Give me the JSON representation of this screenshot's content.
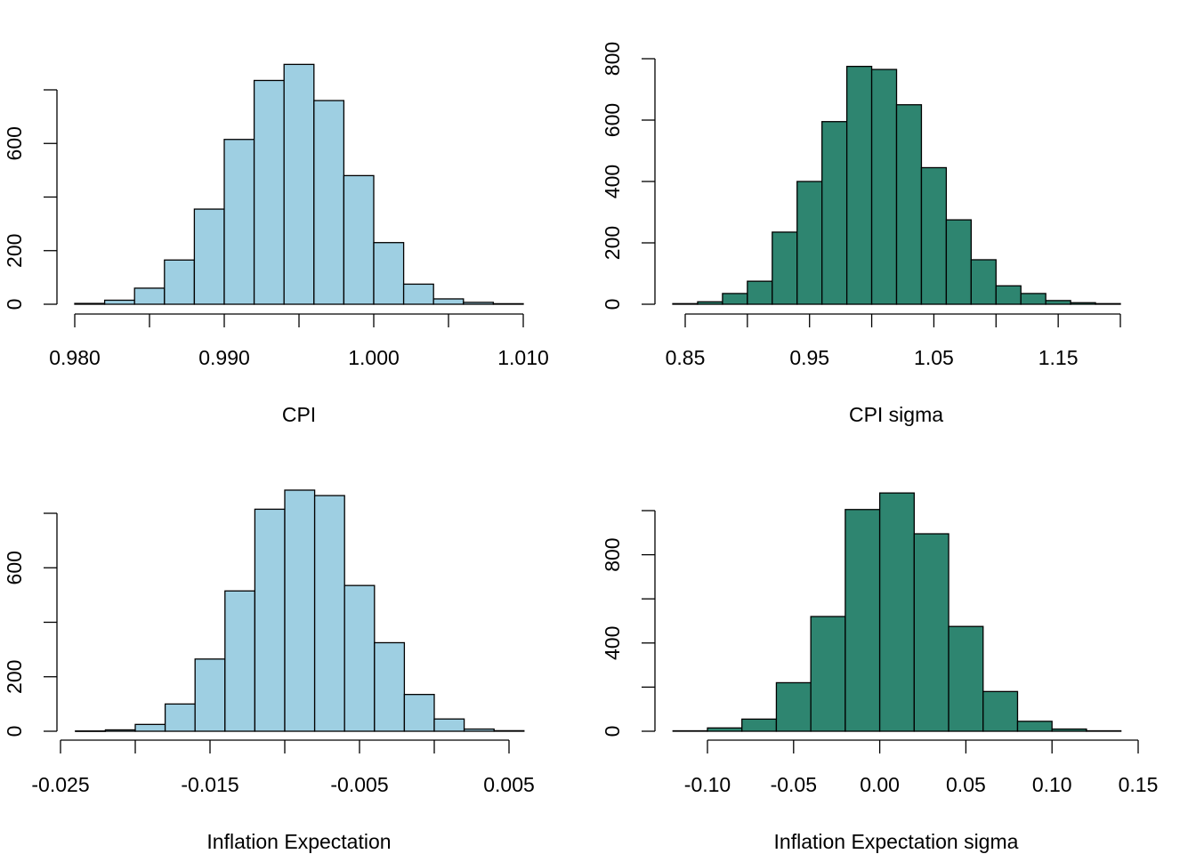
{
  "chart_data": [
    {
      "type": "histogram",
      "title": "",
      "xlabel": "CPI",
      "ylabel": "",
      "bar_color": "#9ECFE2",
      "bin_start": 0.98,
      "bin_width": 0.002,
      "values": [
        3,
        15,
        60,
        165,
        355,
        615,
        835,
        895,
        760,
        480,
        230,
        75,
        20,
        7,
        2
      ],
      "xlim": [
        0.98,
        1.01
      ],
      "ylim": [
        0,
        800
      ],
      "x_ticks": [
        0.98,
        0.985,
        0.99,
        0.995,
        1.0,
        1.005,
        1.01
      ],
      "x_tick_labels": [
        "0.980",
        "",
        "0.990",
        "",
        "1.000",
        "",
        "1.010"
      ],
      "y_ticks": [
        0,
        200,
        400,
        600,
        800
      ],
      "y_tick_labels": [
        "0",
        "200",
        "",
        "600",
        ""
      ]
    },
    {
      "type": "histogram",
      "title": "",
      "xlabel": "CPI sigma",
      "ylabel": "",
      "bar_color": "#2E8570",
      "bin_start": 0.84,
      "bin_width": 0.02,
      "values": [
        2,
        8,
        35,
        75,
        235,
        400,
        595,
        775,
        765,
        650,
        445,
        275,
        145,
        60,
        35,
        12,
        5,
        2
      ],
      "xlim": [
        0.85,
        1.2
      ],
      "ylim": [
        0,
        800
      ],
      "x_ticks": [
        0.85,
        0.9,
        0.95,
        1.0,
        1.05,
        1.1,
        1.15,
        1.2
      ],
      "x_tick_labels": [
        "0.85",
        "",
        "0.95",
        "",
        "1.05",
        "",
        "1.15",
        ""
      ],
      "y_ticks": [
        0,
        200,
        400,
        600,
        800
      ],
      "y_tick_labels": [
        "0",
        "200",
        "400",
        "600",
        "800"
      ]
    },
    {
      "type": "histogram",
      "title": "",
      "xlabel": "Inflation Expectation",
      "ylabel": "",
      "bar_color": "#9ECFE2",
      "bin_start": -0.024,
      "bin_width": 0.002,
      "values": [
        1,
        5,
        25,
        100,
        265,
        515,
        815,
        885,
        865,
        535,
        325,
        135,
        45,
        8,
        2
      ],
      "xlim": [
        -0.025,
        0.005
      ],
      "ylim": [
        0,
        800
      ],
      "x_ticks": [
        -0.025,
        -0.02,
        -0.015,
        -0.01,
        -0.005,
        0.0,
        0.005
      ],
      "x_tick_labels": [
        "-0.025",
        "",
        "-0.015",
        "",
        "-0.005",
        "",
        "0.005"
      ],
      "y_ticks": [
        0,
        200,
        400,
        600,
        800
      ],
      "y_tick_labels": [
        "0",
        "200",
        "",
        "600",
        ""
      ]
    },
    {
      "type": "histogram",
      "title": "",
      "xlabel": "Inflation Expectation sigma",
      "ylabel": "",
      "bar_color": "#2E8570",
      "bin_start": -0.12,
      "bin_width": 0.02,
      "values": [
        2,
        15,
        55,
        220,
        520,
        1005,
        1080,
        895,
        475,
        180,
        45,
        10,
        2
      ],
      "xlim": [
        -0.1,
        0.15
      ],
      "ylim": [
        0,
        1000
      ],
      "x_ticks": [
        -0.1,
        -0.05,
        0.0,
        0.05,
        0.1,
        0.15
      ],
      "x_tick_labels": [
        "-0.10",
        "-0.05",
        "0.00",
        "0.05",
        "0.10",
        "0.15"
      ],
      "y_ticks": [
        0,
        200,
        400,
        600,
        800,
        1000
      ],
      "y_tick_labels": [
        "0",
        "",
        "400",
        "",
        "800",
        ""
      ]
    }
  ]
}
